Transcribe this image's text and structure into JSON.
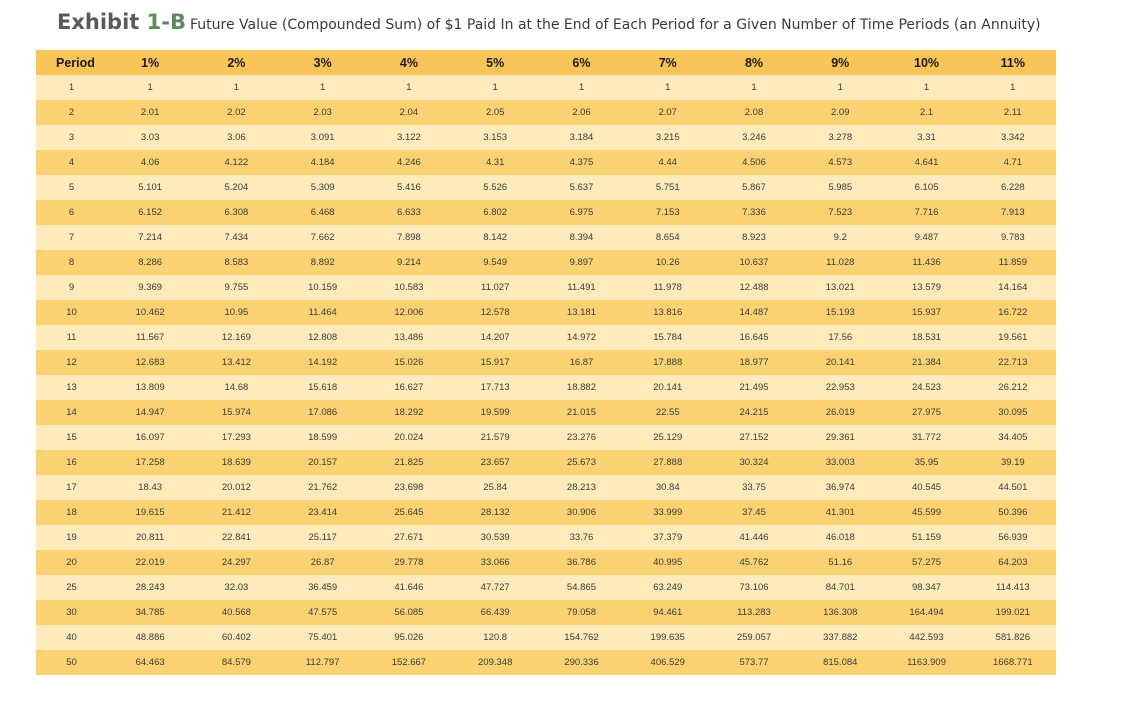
{
  "header": {
    "exhibit_word": "Exhibit",
    "exhibit_number": "1-B",
    "subtitle": "Future Value (Compounded Sum) of $1 Paid In at the End of Each Period for a Given Number of Time Periods (an Annuity)"
  },
  "colors": {
    "header_bg": "#f8c359",
    "row_light": "#feeaba",
    "row_dark": "#fbd272",
    "exhibit_num": "#5d8a60"
  },
  "table": {
    "columns": [
      "Period",
      "1%",
      "2%",
      "3%",
      "4%",
      "5%",
      "6%",
      "7%",
      "8%",
      "9%",
      "10%",
      "11%"
    ],
    "rows": [
      [
        "1",
        "1",
        "1",
        "1",
        "1",
        "1",
        "1",
        "1",
        "1",
        "1",
        "1",
        "1"
      ],
      [
        "2",
        "2.01",
        "2.02",
        "2.03",
        "2.04",
        "2.05",
        "2.06",
        "2.07",
        "2.08",
        "2.09",
        "2.1",
        "2.11"
      ],
      [
        "3",
        "3.03",
        "3.06",
        "3.091",
        "3.122",
        "3.153",
        "3.184",
        "3.215",
        "3.246",
        "3.278",
        "3.31",
        "3.342"
      ],
      [
        "4",
        "4.06",
        "4.122",
        "4.184",
        "4.246",
        "4.31",
        "4.375",
        "4.44",
        "4.506",
        "4.573",
        "4.641",
        "4.71"
      ],
      [
        "5",
        "5.101",
        "5.204",
        "5.309",
        "5.416",
        "5.526",
        "5.637",
        "5.751",
        "5.867",
        "5.985",
        "6.105",
        "6.228"
      ],
      [
        "6",
        "6.152",
        "6.308",
        "6.468",
        "6.633",
        "6.802",
        "6.975",
        "7.153",
        "7.336",
        "7.523",
        "7.716",
        "7.913"
      ],
      [
        "7",
        "7.214",
        "7.434",
        "7.662",
        "7.898",
        "8.142",
        "8.394",
        "8.654",
        "8.923",
        "9.2",
        "9.487",
        "9.783"
      ],
      [
        "8",
        "8.286",
        "8.583",
        "8.892",
        "9.214",
        "9.549",
        "9.897",
        "10.26",
        "10.637",
        "11.028",
        "11.436",
        "11.859"
      ],
      [
        "9",
        "9.369",
        "9.755",
        "10.159",
        "10.583",
        "11.027",
        "11.491",
        "11.978",
        "12.488",
        "13.021",
        "13.579",
        "14.164"
      ],
      [
        "10",
        "10.462",
        "10.95",
        "11.464",
        "12.006",
        "12.578",
        "13.181",
        "13.816",
        "14.487",
        "15.193",
        "15.937",
        "16.722"
      ],
      [
        "11",
        "11.567",
        "12.169",
        "12.808",
        "13.486",
        "14.207",
        "14.972",
        "15.784",
        "16.645",
        "17.56",
        "18.531",
        "19.561"
      ],
      [
        "12",
        "12.683",
        "13.412",
        "14.192",
        "15.026",
        "15.917",
        "16.87",
        "17.888",
        "18.977",
        "20.141",
        "21.384",
        "22.713"
      ],
      [
        "13",
        "13.809",
        "14.68",
        "15.618",
        "16.627",
        "17.713",
        "18.882",
        "20.141",
        "21.495",
        "22.953",
        "24.523",
        "26.212"
      ],
      [
        "14",
        "14.947",
        "15.974",
        "17.086",
        "18.292",
        "19.599",
        "21.015",
        "22.55",
        "24.215",
        "26.019",
        "27.975",
        "30.095"
      ],
      [
        "15",
        "16.097",
        "17.293",
        "18.599",
        "20.024",
        "21.579",
        "23.276",
        "25.129",
        "27.152",
        "29.361",
        "31.772",
        "34.405"
      ],
      [
        "16",
        "17.258",
        "18.639",
        "20.157",
        "21.825",
        "23.657",
        "25.673",
        "27.888",
        "30.324",
        "33.003",
        "35.95",
        "39.19"
      ],
      [
        "17",
        "18.43",
        "20.012",
        "21.762",
        "23.698",
        "25.84",
        "28.213",
        "30.84",
        "33.75",
        "36.974",
        "40.545",
        "44.501"
      ],
      [
        "18",
        "19.615",
        "21.412",
        "23.414",
        "25.645",
        "28.132",
        "30.906",
        "33.999",
        "37.45",
        "41.301",
        "45.599",
        "50.396"
      ],
      [
        "19",
        "20.811",
        "22.841",
        "25.117",
        "27.671",
        "30.539",
        "33.76",
        "37.379",
        "41.446",
        "46.018",
        "51.159",
        "56.939"
      ],
      [
        "20",
        "22.019",
        "24.297",
        "26.87",
        "29.778",
        "33.066",
        "36.786",
        "40.995",
        "45.762",
        "51.16",
        "57.275",
        "64.203"
      ],
      [
        "25",
        "28.243",
        "32.03",
        "36.459",
        "41.646",
        "47.727",
        "54.865",
        "63.249",
        "73.106",
        "84.701",
        "98.347",
        "114.413"
      ],
      [
        "30",
        "34.785",
        "40.568",
        "47.575",
        "56.085",
        "66.439",
        "79.058",
        "94.461",
        "113.283",
        "136.308",
        "164.494",
        "199.021"
      ],
      [
        "40",
        "48.886",
        "60.402",
        "75.401",
        "95.026",
        "120.8",
        "154.762",
        "199.635",
        "259.057",
        "337.882",
        "442.593",
        "581.826"
      ],
      [
        "50",
        "64.463",
        "84.579",
        "112.797",
        "152.667",
        "209.348",
        "290.336",
        "406.529",
        "573.77",
        "815.084",
        "1163.909",
        "1668.771"
      ]
    ]
  }
}
